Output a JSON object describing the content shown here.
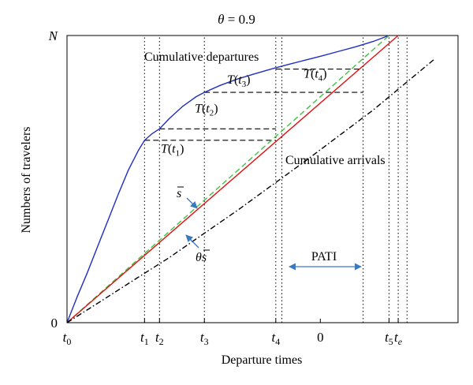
{
  "chart_data": {
    "type": "line",
    "title": "θ = 0.9",
    "xlabel": "Departure times",
    "ylabel": "Numbers of travelers",
    "xlim": [
      0,
      1.15
    ],
    "ylim": [
      0,
      1.0
    ],
    "x_ticks": [
      {
        "x": 0.0,
        "base": "t",
        "sub": "0"
      },
      {
        "x": 0.228,
        "base": "t",
        "sub": "1"
      },
      {
        "x": 0.272,
        "base": "t",
        "sub": "2"
      },
      {
        "x": 0.404,
        "base": "t",
        "sub": "3"
      },
      {
        "x": 0.614,
        "base": "t",
        "sub": "4"
      },
      {
        "x": 0.745,
        "base": "0",
        "sub": ""
      },
      {
        "x": 0.947,
        "base": "t",
        "sub": "5"
      },
      {
        "x": 0.974,
        "base": "t",
        "sub": "e"
      }
    ],
    "y_ticks": [
      {
        "y": 0,
        "label": "0"
      },
      {
        "y": 1,
        "label": "N"
      }
    ],
    "series": [
      {
        "key": "departures",
        "color": "#1f2fbf",
        "style": "solid",
        "x": [
          0,
          0.03,
          0.06,
          0.09,
          0.12,
          0.15,
          0.18,
          0.21,
          0.228,
          0.25,
          0.272,
          0.3,
          0.34,
          0.38,
          0.404,
          0.45,
          0.5,
          0.55,
          0.6,
          0.65,
          0.7,
          0.75,
          0.8,
          0.85,
          0.9,
          0.947
        ],
        "y": [
          0,
          0.09,
          0.175,
          0.265,
          0.355,
          0.445,
          0.53,
          0.6,
          0.635,
          0.658,
          0.675,
          0.71,
          0.753,
          0.787,
          0.802,
          0.826,
          0.848,
          0.866,
          0.883,
          0.899,
          0.914,
          0.929,
          0.945,
          0.961,
          0.979,
          1.0
        ]
      },
      {
        "key": "arrival_s",
        "color": "#3fc43f",
        "style": "dashed",
        "x": [
          0,
          0.947
        ],
        "y": [
          0,
          1.0
        ]
      },
      {
        "key": "arrivals_red",
        "color": "#e01010",
        "style": "solid",
        "x": [
          0,
          0.974
        ],
        "y": [
          0,
          1.0
        ]
      },
      {
        "key": "arrivals_theta",
        "color": "#000000",
        "style": "dashdot",
        "x": [
          0,
          0.1,
          0.2,
          0.3,
          0.5,
          0.7,
          0.9,
          1.083
        ],
        "y": [
          0,
          0.075,
          0.151,
          0.226,
          0.39,
          0.562,
          0.74,
          0.92
        ]
      }
    ],
    "queue_lines": [
      {
        "x1": 0.228,
        "x2": 0.614,
        "y": 0.635,
        "label_base": "T",
        "label_sub": "1",
        "label_x": 0.31,
        "label_y": 0.592
      },
      {
        "x1": 0.272,
        "x2": 0.614,
        "y": 0.675,
        "label_base": "T",
        "label_sub": "2",
        "label_x": 0.41,
        "label_y": 0.732
      },
      {
        "x1": 0.404,
        "x2": 0.871,
        "y": 0.802,
        "label_base": "T",
        "label_sub": "3",
        "label_x": 0.505,
        "label_y": 0.832
      },
      {
        "x1": 0.614,
        "x2": 0.871,
        "y": 0.883,
        "label_base": "T",
        "label_sub": "4",
        "label_x": 0.73,
        "label_y": 0.853
      }
    ],
    "vertical_markers": [
      0.228,
      0.272,
      0.404,
      0.614,
      0.632,
      0.871,
      0.947,
      0.974,
      1.0
    ],
    "annotations": {
      "departures_label": "Cumulative departures",
      "arrivals_label": "Cumulative arrivals",
      "s_label": "s",
      "theta_s_label": "θs",
      "pati_label": "PATI"
    }
  }
}
